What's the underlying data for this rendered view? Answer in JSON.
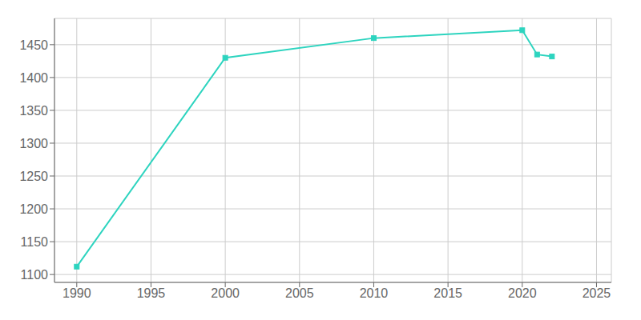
{
  "chart_data": {
    "type": "line",
    "x": [
      1990,
      2000,
      2010,
      2020,
      2021,
      2022
    ],
    "values": [
      1112,
      1430,
      1460,
      1472,
      1435,
      1432
    ],
    "color": "#2dd4bf",
    "marker": "square",
    "xlim": [
      1988.5,
      2026
    ],
    "ylim": [
      1088,
      1490
    ],
    "xticks": [
      1990,
      1995,
      2000,
      2005,
      2010,
      2015,
      2020,
      2025
    ],
    "yticks": [
      1100,
      1150,
      1200,
      1250,
      1300,
      1350,
      1400,
      1450
    ],
    "grid": true
  }
}
